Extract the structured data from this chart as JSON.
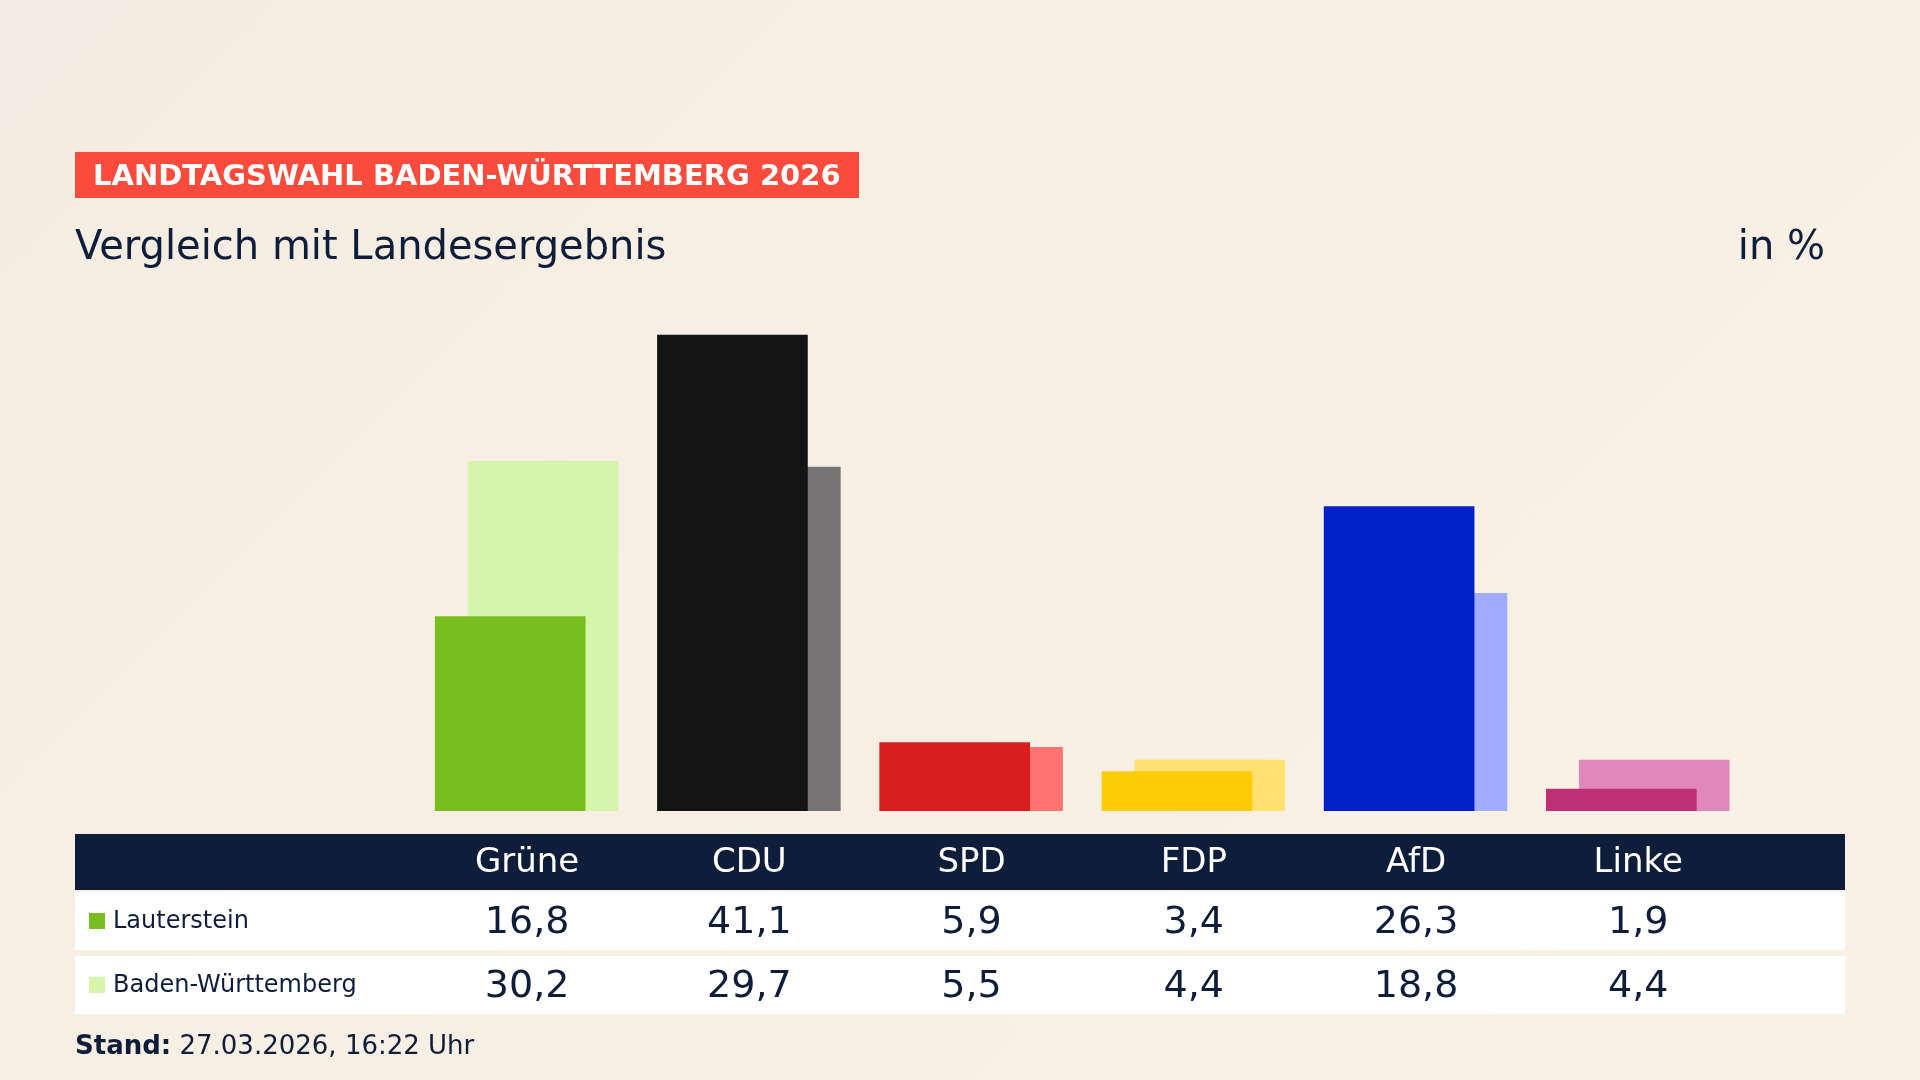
{
  "chart_data": {
    "type": "bar",
    "title": "LANDTAGSWAHL BADEN-WÜRTTEMBERG 2026",
    "subtitle": "Vergleich mit Landesergebnis",
    "annotations": [
      "in %",
      "Stand: 27.03.2026, 16:22 Uhr"
    ],
    "categories": [
      "Grüne",
      "CDU",
      "SPD",
      "FDP",
      "AfD",
      "Linke"
    ],
    "legend": "bottom left",
    "series": [
      {
        "name": "Lauterstein",
        "colors": [
          "#78be1e",
          "#141414",
          "#d71f1f",
          "#ffcc0a",
          "#0021c7",
          "#be3075"
        ],
        "values": [
          16.8,
          41.1,
          5.9,
          3.4,
          26.3,
          1.9
        ],
        "value_labels": [
          "16,8",
          "41,1",
          "5,9",
          "3,4",
          "26,3",
          "1,9"
        ]
      },
      {
        "name": "Baden-Württemberg",
        "colors": [
          "#d4f5ab",
          "#757373",
          "#ff7470",
          "#ffe070",
          "#a0acff",
          "#df88b9"
        ],
        "values": [
          30.2,
          29.7,
          5.5,
          4.4,
          18.8,
          4.4
        ],
        "value_labels": [
          "30,2",
          "29,7",
          "5,5",
          "4,4",
          "18,8",
          "4,4"
        ]
      }
    ]
  }
}
